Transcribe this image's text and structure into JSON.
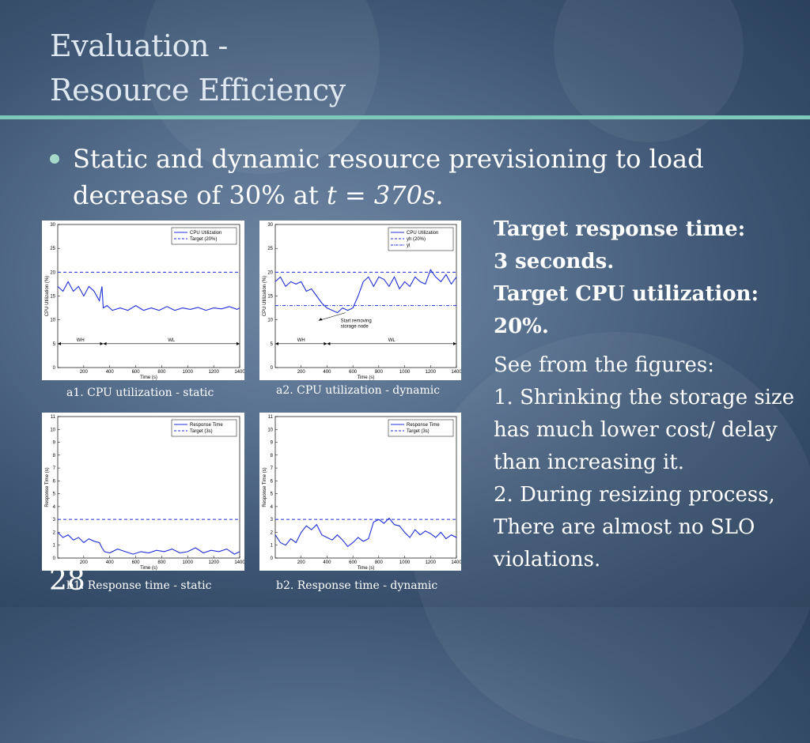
{
  "title": {
    "line1": "Evaluation -",
    "line2": "Resource Efficiency"
  },
  "bullet": {
    "text_a": "Static and dynamic resource previsioning to load decrease of 30% at ",
    "math": "t = 370s",
    "text_b": "."
  },
  "side": {
    "bold_lines": [
      "Target response time:",
      "3 seconds.",
      "Target CPU utilization:",
      "20%."
    ],
    "lines": [
      "See from the figures:",
      "1. Shrinking the storage size has much lower cost/ delay than increasing it.",
      "2. During resizing process, There are almost no SLO violations."
    ]
  },
  "slide_number": "28",
  "captions": [
    "a1. CPU utilization - static",
    "a2. CPU utilization - dynamic",
    "b1. Response time - static",
    "b2. Response time - dynamic"
  ],
  "colors": {
    "series": "#1f2fd6",
    "target": "#1f2fd6",
    "rule": "#7ec8ba"
  },
  "chart_data": [
    {
      "id": "a1",
      "type": "line",
      "title": "",
      "xlabel": "Time (s)",
      "ylabel": "CPU Utilization (%)",
      "xlim": [
        0,
        1400
      ],
      "ylim": [
        0,
        30
      ],
      "xticks": [
        "200",
        "400",
        "600",
        "800",
        "1000",
        "1200",
        "1400"
      ],
      "xtick_values": [
        200,
        400,
        600,
        800,
        1000,
        1200,
        1400
      ],
      "yticks": [
        "0",
        "5",
        "10",
        "15",
        "20",
        "25",
        "30"
      ],
      "ytick_values": [
        0,
        5,
        10,
        15,
        20,
        25,
        30
      ],
      "legend": [
        "CPU Utilization",
        "Target (20%)"
      ],
      "legend_position": "top-right",
      "series": [
        {
          "name": "CPU Utilization",
          "x": [
            0,
            40,
            80,
            120,
            160,
            200,
            240,
            280,
            320,
            340,
            350,
            380,
            420,
            480,
            540,
            600,
            660,
            720,
            780,
            840,
            900,
            960,
            1020,
            1080,
            1140,
            1200,
            1260,
            1320,
            1380,
            1400
          ],
          "y": [
            17,
            16,
            18,
            16,
            17,
            15,
            17,
            16,
            14,
            17,
            12.5,
            13,
            12,
            12.5,
            12,
            13,
            12,
            12.5,
            12,
            12.8,
            12,
            12.5,
            12.2,
            12.6,
            12,
            12.5,
            12.3,
            12.8,
            12.2,
            12.5
          ]
        }
      ],
      "target": 20,
      "annotations": [
        {
          "text": "WH",
          "x_range": [
            0,
            350
          ],
          "y": 5
        },
        {
          "text": "WL",
          "x_range": [
            350,
            1400
          ],
          "y": 5
        }
      ]
    },
    {
      "id": "a2",
      "type": "line",
      "title": "",
      "xlabel": "Time (s)",
      "ylabel": "CPU Utilization (%)",
      "xlim": [
        0,
        1400
      ],
      "ylim": [
        0,
        30
      ],
      "xticks": [
        "200",
        "400",
        "600",
        "800",
        "1000",
        "1200",
        "1400"
      ],
      "xtick_values": [
        200,
        400,
        600,
        800,
        1000,
        1200,
        1400
      ],
      "yticks": [
        "0",
        "5",
        "10",
        "15",
        "20",
        "25",
        "30"
      ],
      "ytick_values": [
        0,
        5,
        10,
        15,
        20,
        25,
        30
      ],
      "legend": [
        "CPU Utilization",
        "yh (20%)",
        "yl"
      ],
      "legend_position": "top-right",
      "series": [
        {
          "name": "CPU Utilization",
          "x": [
            0,
            40,
            80,
            120,
            160,
            200,
            240,
            280,
            320,
            360,
            400,
            440,
            480,
            520,
            560,
            600,
            640,
            680,
            720,
            760,
            800,
            840,
            880,
            920,
            960,
            1000,
            1040,
            1080,
            1120,
            1160,
            1200,
            1240,
            1280,
            1320,
            1360,
            1400
          ],
          "y": [
            18,
            19,
            17,
            18,
            17.5,
            18,
            16,
            16.5,
            15,
            13.5,
            12.5,
            12,
            11.5,
            12.5,
            12,
            12.5,
            15,
            18,
            19,
            17,
            19,
            18.5,
            17,
            19,
            16.5,
            18,
            17,
            19,
            18,
            17.5,
            20.5,
            19,
            18,
            19.5,
            17.5,
            19
          ]
        }
      ],
      "target": 20,
      "lower_target": 13,
      "annotations": [
        {
          "text": "Start removing storage node",
          "x": 640,
          "y": 11.5
        },
        {
          "text": "WH",
          "x_range": [
            0,
            400
          ],
          "y": 5
        },
        {
          "text": "WL",
          "x_range": [
            400,
            1400
          ],
          "y": 5
        }
      ]
    },
    {
      "id": "b1",
      "type": "line",
      "title": "",
      "xlabel": "Time (s)",
      "ylabel": "Response Time (s)",
      "xlim": [
        0,
        1400
      ],
      "ylim": [
        0,
        11
      ],
      "xticks": [
        "200",
        "400",
        "600",
        "800",
        "1000",
        "1200",
        "1400"
      ],
      "xtick_values": [
        200,
        400,
        600,
        800,
        1000,
        1200,
        1400
      ],
      "yticks": [
        "0",
        "1",
        "2",
        "3",
        "4",
        "5",
        "6",
        "7",
        "8",
        "9",
        "10",
        "11"
      ],
      "ytick_values": [
        0,
        1,
        2,
        3,
        4,
        5,
        6,
        7,
        8,
        9,
        10,
        11
      ],
      "legend": [
        "Response Time",
        "Target (3s)"
      ],
      "legend_position": "top-right",
      "series": [
        {
          "name": "Response Time",
          "x": [
            0,
            40,
            80,
            120,
            160,
            200,
            240,
            280,
            320,
            340,
            360,
            400,
            460,
            520,
            580,
            640,
            700,
            760,
            820,
            880,
            940,
            1000,
            1060,
            1120,
            1180,
            1240,
            1300,
            1360,
            1400
          ],
          "y": [
            2.0,
            1.6,
            1.8,
            1.4,
            1.6,
            1.2,
            1.5,
            1.3,
            1.2,
            0.8,
            0.5,
            0.4,
            0.7,
            0.5,
            0.3,
            0.5,
            0.4,
            0.6,
            0.5,
            0.7,
            0.4,
            0.5,
            0.8,
            0.4,
            0.6,
            0.5,
            0.7,
            0.3,
            0.5
          ]
        }
      ],
      "target": 3
    },
    {
      "id": "b2",
      "type": "line",
      "title": "",
      "xlabel": "Time (s)",
      "ylabel": "Response Time (s)",
      "xlim": [
        0,
        1400
      ],
      "ylim": [
        0,
        11
      ],
      "xticks": [
        "200",
        "400",
        "600",
        "800",
        "1000",
        "1200",
        "1400"
      ],
      "xtick_values": [
        200,
        400,
        600,
        800,
        1000,
        1200,
        1400
      ],
      "yticks": [
        "0",
        "1",
        "2",
        "3",
        "4",
        "5",
        "6",
        "7",
        "8",
        "9",
        "10",
        "11"
      ],
      "ytick_values": [
        0,
        1,
        2,
        3,
        4,
        5,
        6,
        7,
        8,
        9,
        10,
        11
      ],
      "legend": [
        "Response Time",
        "Target (3s)"
      ],
      "legend_position": "top-right",
      "series": [
        {
          "name": "Response Time",
          "x": [
            0,
            40,
            80,
            120,
            160,
            200,
            240,
            280,
            320,
            360,
            400,
            440,
            480,
            520,
            560,
            600,
            640,
            680,
            720,
            760,
            800,
            840,
            880,
            920,
            960,
            1000,
            1040,
            1080,
            1120,
            1160,
            1200,
            1240,
            1280,
            1320,
            1360,
            1400
          ],
          "y": [
            1.8,
            1.2,
            1.0,
            1.5,
            1.2,
            2.0,
            2.5,
            2.2,
            2.6,
            1.8,
            1.6,
            1.4,
            1.8,
            1.4,
            0.9,
            1.2,
            1.6,
            1.3,
            1.5,
            2.8,
            3.0,
            2.7,
            3.1,
            2.6,
            2.5,
            2.0,
            1.6,
            2.2,
            1.8,
            2.1,
            1.9,
            1.6,
            2.0,
            1.5,
            1.8,
            1.6
          ]
        }
      ],
      "target": 3
    }
  ]
}
